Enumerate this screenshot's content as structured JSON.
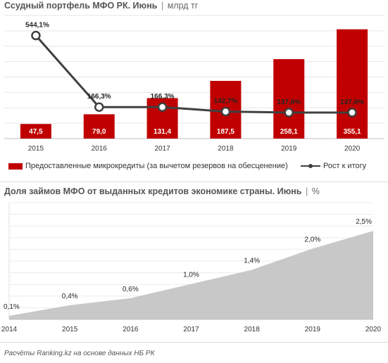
{
  "titles": {
    "chart1_title": "Ссудный портфель МФО РК. Июнь",
    "chart1_unit": "млрд тг",
    "chart2_title": "Доля займов МФО от выданных кредитов экономике страны. Июнь",
    "chart2_unit": "%",
    "separator": "|"
  },
  "legend": {
    "bars_label": "Предоставленные микрокредиты (за вычетом резервов на обесценение)",
    "line_label": "Рост к итогу"
  },
  "source": "Расчёты Ranking.kz на основе данных НБ РК",
  "colors": {
    "bar": "#c00000",
    "line": "#404040",
    "area": "#c8c8c8"
  },
  "chart_data": [
    {
      "type": "bar",
      "categories": [
        "2015",
        "2016",
        "2017",
        "2018",
        "2019",
        "2020"
      ],
      "series": [
        {
          "name": "Предоставленные микрокредиты (за вычетом резервов на обесценение)",
          "type": "bar",
          "values": [
            47.5,
            79.0,
            131.4,
            187.5,
            258.1,
            355.1
          ],
          "labels": [
            "47,5",
            "79,0",
            "131,4",
            "187,5",
            "258,1",
            "355,1"
          ]
        },
        {
          "name": "Рост к итогу",
          "type": "line",
          "values": [
            544.1,
            166.3,
            166.3,
            142.7,
            137.6,
            137.6
          ],
          "labels": [
            "544,1%",
            "166,3%",
            "166,3%",
            "142,7%",
            "137,6%",
            "137,6%"
          ]
        }
      ],
      "bar_ylim": [
        0,
        400
      ],
      "line_ylim": [
        0,
        650
      ]
    },
    {
      "type": "area",
      "x": [
        "2014",
        "2015",
        "2016",
        "2017",
        "2018",
        "2019",
        "2020"
      ],
      "values": [
        0.1,
        0.4,
        0.6,
        1.0,
        1.4,
        2.0,
        2.5
      ],
      "labels": [
        "0,1%",
        "0,4%",
        "0,6%",
        "1,0%",
        "1,4%",
        "2,0%",
        "2,5%"
      ],
      "ylim": [
        0,
        3.3
      ]
    }
  ]
}
